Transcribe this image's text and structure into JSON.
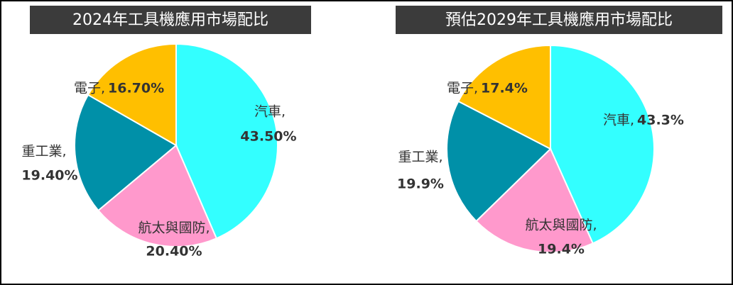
{
  "chart_data": [
    {
      "type": "pie",
      "title": "2024年工具機應用市場配比",
      "categories": [
        "汽車,",
        "航太與國防,",
        "重工業,",
        "電子,"
      ],
      "values": [
        43.5,
        20.4,
        19.4,
        16.7
      ],
      "value_labels": [
        "43.50%",
        "20.40%",
        "19.40%",
        "16.70%"
      ],
      "colors": [
        "#33ffff",
        "#ff99cc",
        "#0090a8",
        "#ffbf00"
      ]
    },
    {
      "type": "pie",
      "title": "預估2029年工具機應用市場配比",
      "categories": [
        "汽車,",
        "航太與國防,",
        "重工業,",
        "電子,"
      ],
      "values": [
        43.3,
        19.4,
        19.9,
        17.4
      ],
      "value_labels": [
        "43.3%",
        "19.4%",
        "19.9%",
        "17.4%"
      ],
      "colors": [
        "#33ffff",
        "#ff99cc",
        "#0090a8",
        "#ffbf00"
      ]
    }
  ]
}
